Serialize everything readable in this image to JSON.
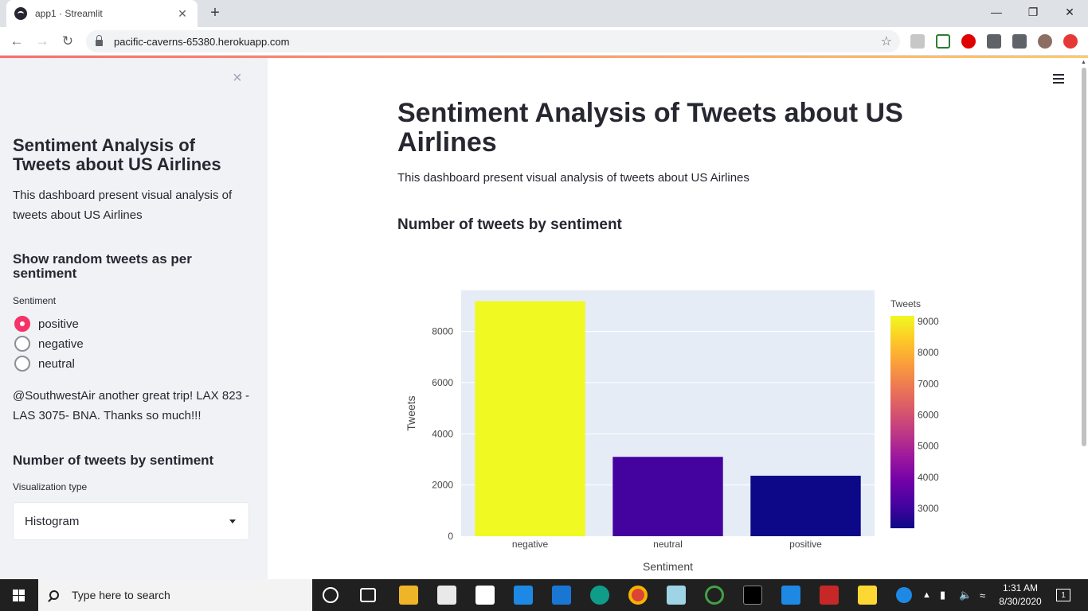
{
  "browser": {
    "tab_title": "app1 · Streamlit",
    "tab_close": "✕",
    "new_tab": "+",
    "url": "pacific-caverns-65380.herokuapp.com",
    "window_min": "—",
    "window_restore": "❐",
    "window_close": "✕"
  },
  "sidebar": {
    "close": "×",
    "title": "Sentiment Analysis of Tweets about US Airlines",
    "description": "This dashboard present visual analysis of tweets about US Airlines",
    "random_heading": "Show random tweets as per sentiment",
    "sentiment_label": "Sentiment",
    "options": [
      {
        "label": "positive",
        "selected": true
      },
      {
        "label": "negative",
        "selected": false
      },
      {
        "label": "neutral",
        "selected": false
      }
    ],
    "random_tweet": "@SouthwestAir another great trip! LAX 823 - LAS 3075- BNA. Thanks so much!!!",
    "count_heading": "Number of tweets by sentiment",
    "viz_label": "Visualization type",
    "viz_value": "Histogram"
  },
  "main": {
    "title": "Sentiment Analysis of Tweets about US Airlines",
    "description": "This dashboard present visual analysis of tweets about US Airlines",
    "chart_heading": "Number of tweets by sentiment"
  },
  "chart_data": {
    "type": "bar",
    "categories": [
      "negative",
      "neutral",
      "positive"
    ],
    "values": [
      9178,
      3099,
      2363
    ],
    "xlabel": "Sentiment",
    "ylabel": "Tweets",
    "ylim": [
      0,
      9600
    ],
    "yticks": [
      0,
      2000,
      4000,
      6000,
      8000
    ],
    "colorbar_title": "Tweets",
    "colorbar_ticks": [
      3000,
      4000,
      5000,
      6000,
      7000,
      8000,
      9000
    ],
    "colorbar_range": [
      2363,
      9178
    ],
    "colorscale": [
      "#0d0887",
      "#46039f",
      "#7201a8",
      "#9c179e",
      "#bd3786",
      "#d8576b",
      "#ed7953",
      "#fb9f3a",
      "#fdca26",
      "#f0f921"
    ],
    "plot_bg": "#e5ecf6"
  },
  "taskbar": {
    "search_placeholder": "Type here to search",
    "time": "1:31 AM",
    "date": "8/30/2020",
    "notification_count": "1"
  },
  "colors": {
    "accent": "#f63366",
    "sidebar_bg": "#f0f2f6"
  }
}
